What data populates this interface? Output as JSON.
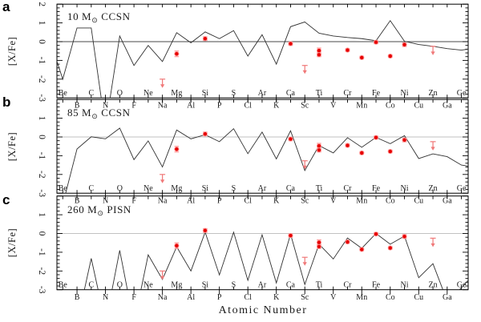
{
  "figure": {
    "background": "#ffffff",
    "frame_color": "#000000",
    "model_line_color": "#303030",
    "observed_point_color": "#e60000",
    "observed_halo_color": "#ff9999",
    "error_bar_color": "#ff9494",
    "upper_limit_color": "#f07878"
  },
  "chart_data": {
    "type": "line",
    "subtype": "multi-panel abundance pattern: model lines + observed scatter points",
    "xlabel": "Atomic Number",
    "ylabel": "[X/Fe]",
    "ylim": [
      -3,
      2
    ],
    "yticks": [
      2,
      1,
      0,
      -1,
      -2,
      -3
    ],
    "y_minor_step": 0.2,
    "xlim_atomic_number": [
      3.7,
      32.4
    ],
    "x_categories": [
      "Be",
      "B",
      "C",
      "N",
      "O",
      "F",
      "Ne",
      "Na",
      "Mg",
      "Al",
      "Si",
      "P",
      "S",
      "Cl",
      "Ar",
      "K",
      "Ca",
      "Sc",
      "Ti",
      "V",
      "Cr",
      "Mn",
      "Fe",
      "Co",
      "Ni",
      "Cu",
      "Zn",
      "Ga",
      "Ge"
    ],
    "atomic_numbers": [
      4,
      5,
      6,
      7,
      8,
      9,
      10,
      11,
      12,
      13,
      14,
      15,
      16,
      17,
      18,
      19,
      20,
      21,
      22,
      23,
      24,
      25,
      26,
      27,
      28,
      29,
      30,
      31,
      32
    ],
    "observed_star": {
      "points": [
        {
          "element": "Mg",
          "z": 12,
          "y": -0.65,
          "err": 0.15
        },
        {
          "element": "Si",
          "z": 14,
          "y": 0.16,
          "err": 0.1
        },
        {
          "element": "Ca",
          "z": 20,
          "y": -0.11,
          "err": 0.09
        },
        {
          "element": "Ti",
          "z": 22,
          "y": -0.48,
          "err": 0.14
        },
        {
          "element": "Ti",
          "z": 22,
          "y": -0.7,
          "err": 0.1
        },
        {
          "element": "Cr",
          "z": 24,
          "y": -0.45,
          "err": 0.08
        },
        {
          "element": "Mn",
          "z": 25,
          "y": -0.85,
          "err": 0.07
        },
        {
          "element": "Fe",
          "z": 26,
          "y": -0.03,
          "err": 0.08
        },
        {
          "element": "Co",
          "z": 27,
          "y": -0.77,
          "err": 0.07
        },
        {
          "element": "Ni",
          "z": 28,
          "y": -0.16,
          "err": 0.1
        }
      ],
      "upper_limits": [
        {
          "element": "Na",
          "z": 11,
          "y": -2.0,
          "tip": -2.47
        },
        {
          "element": "Sc",
          "z": 21,
          "y": -1.27,
          "tip": -1.72
        },
        {
          "element": "Zn",
          "z": 30,
          "y": -0.25,
          "tip": -0.72
        }
      ]
    },
    "panels": [
      {
        "letter": "a",
        "title": "10 M⊙ CCSN",
        "title_parts": {
          "pre": "10 M",
          "sun": "⊙",
          "post": " CCSN"
        },
        "zero_line_color": "#4a4a4a",
        "edge_left": -1.05,
        "edge_right": -0.4,
        "model_XFe": [
          -2.0,
          0.73,
          0.73,
          -4.6,
          0.3,
          -1.27,
          -0.2,
          -1.06,
          0.48,
          -0.06,
          0.52,
          0.16,
          0.59,
          -0.77,
          0.37,
          -1.2,
          0.8,
          1.05,
          0.45,
          0.3,
          0.22,
          0.16,
          0.05,
          1.12,
          0.02,
          -0.15,
          -0.25,
          -0.37,
          -0.45
        ]
      },
      {
        "letter": "b",
        "title": "85 M⊙ CCSN",
        "title_parts": {
          "pre": "85 M",
          "sun": "⊙",
          "post": " CCSN"
        },
        "zero_line_color": "#c2c2c2",
        "edge_left": null,
        "edge_right": -1.55,
        "model_XFe": [
          -3.6,
          -0.64,
          0.01,
          -0.1,
          0.47,
          -1.21,
          -0.21,
          -1.6,
          0.37,
          -0.1,
          0.12,
          -0.25,
          0.44,
          -0.89,
          0.26,
          -1.17,
          0.33,
          -1.79,
          -0.46,
          -0.85,
          -0.04,
          -0.55,
          -0.02,
          -0.36,
          0.07,
          -1.15,
          -0.9,
          -1.05,
          -1.5
        ]
      },
      {
        "letter": "c",
        "title": "260 M⊙ PISN",
        "title_parts": {
          "pre": "260 M",
          "sun": "⊙",
          "post": " PISN"
        },
        "zero_line_color": "#c2c2c2",
        "edge_left": null,
        "edge_right": -2.5,
        "model_XFe": [
          -4.5,
          -4.8,
          -1.33,
          -4.8,
          -0.9,
          -4.8,
          -1.14,
          -2.45,
          -0.71,
          -2.0,
          0.07,
          -2.21,
          0.07,
          -2.5,
          -0.07,
          -2.64,
          -0.04,
          -2.72,
          -0.57,
          -1.36,
          -0.24,
          -0.79,
          0.0,
          -0.57,
          -0.14,
          -2.36,
          -1.61,
          -3.6,
          -2.9
        ]
      }
    ]
  }
}
